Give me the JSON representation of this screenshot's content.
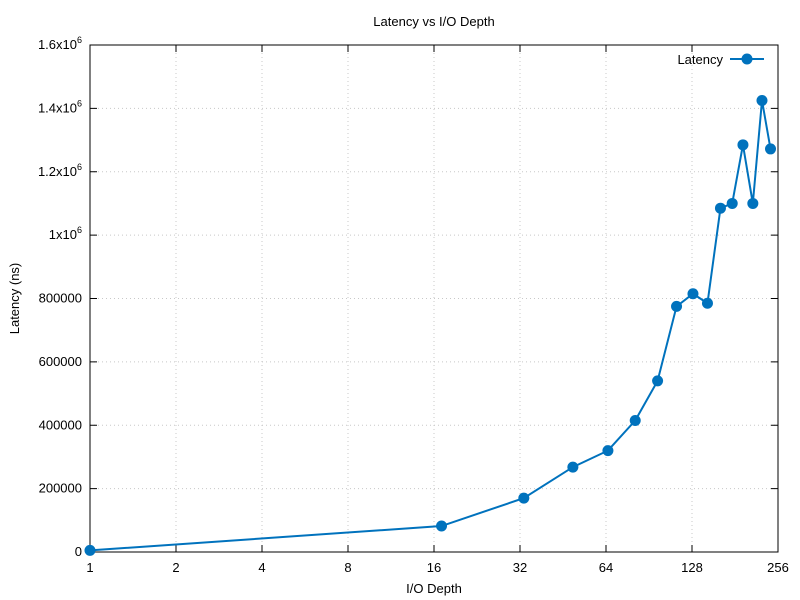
{
  "chart_data": {
    "type": "line",
    "title": "Latency vs I/O Depth",
    "xlabel": "I/O Depth",
    "ylabel": "Latency (ns)",
    "xscale": "log2",
    "xlim": [
      1,
      256
    ],
    "ylim": [
      0,
      1600000
    ],
    "grid": true,
    "legend_position": "top-right",
    "x_ticks": [
      {
        "value": 1,
        "label": "1"
      },
      {
        "value": 2,
        "label": "2"
      },
      {
        "value": 4,
        "label": "4"
      },
      {
        "value": 8,
        "label": "8"
      },
      {
        "value": 16,
        "label": "16"
      },
      {
        "value": 32,
        "label": "32"
      },
      {
        "value": 64,
        "label": "64"
      },
      {
        "value": 128,
        "label": "128"
      },
      {
        "value": 256,
        "label": "256"
      }
    ],
    "y_ticks": [
      {
        "value": 0,
        "label": "0"
      },
      {
        "value": 200000,
        "label": "200000"
      },
      {
        "value": 400000,
        "label": "400000"
      },
      {
        "value": 600000,
        "label": "600000"
      },
      {
        "value": 800000,
        "label": "800000"
      },
      {
        "value": 1000000,
        "label": "1x10",
        "sup": "6"
      },
      {
        "value": 1200000,
        "label": "1.2x10",
        "sup": "6"
      },
      {
        "value": 1400000,
        "label": "1.4x10",
        "sup": "6"
      },
      {
        "value": 1600000,
        "label": "1.6x10",
        "sup": "6"
      }
    ],
    "series": [
      {
        "name": "Latency",
        "color": "#0072bd",
        "x": [
          1,
          17,
          33,
          49,
          65,
          81,
          97,
          113,
          129,
          145,
          161,
          177,
          193,
          209,
          225,
          241
        ],
        "y": [
          5000,
          82000,
          170000,
          268000,
          320000,
          415000,
          540000,
          775000,
          815000,
          785000,
          1085000,
          1100000,
          1285000,
          1100000,
          1425000,
          1272000
        ]
      }
    ]
  }
}
